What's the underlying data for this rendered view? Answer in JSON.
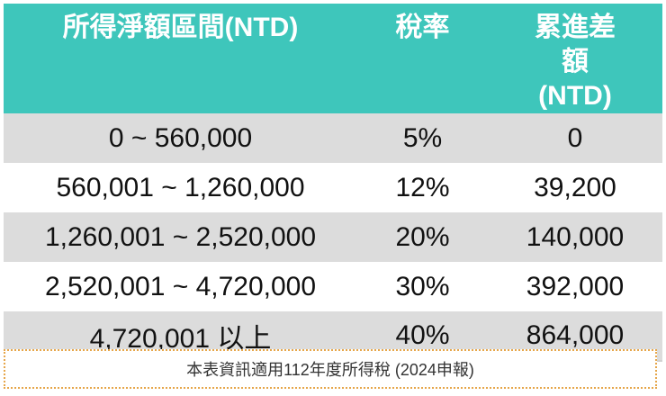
{
  "table": {
    "headers": [
      "所得淨額區間(NTD)",
      "稅率",
      "累進差額(NTD)"
    ],
    "rows": [
      [
        "0 ~ 560,000",
        "5%",
        "0"
      ],
      [
        "560,001 ~ 1,260,000",
        "12%",
        "39,200"
      ],
      [
        "1,260,001 ~ 2,520,000",
        "20%",
        "140,000"
      ],
      [
        "2,520,001 ~ 4,720,000",
        "30%",
        "392,000"
      ],
      [
        "4,720,001 以上",
        "40%",
        "864,000"
      ]
    ]
  },
  "note": "本表資訊適用112年度所得稅 (2024申報)",
  "colors": {
    "header_bg": "#3ec6bb",
    "header_text": "#ffffff",
    "stripe": "#dcdcdc",
    "note_border": "#e6a64a"
  }
}
